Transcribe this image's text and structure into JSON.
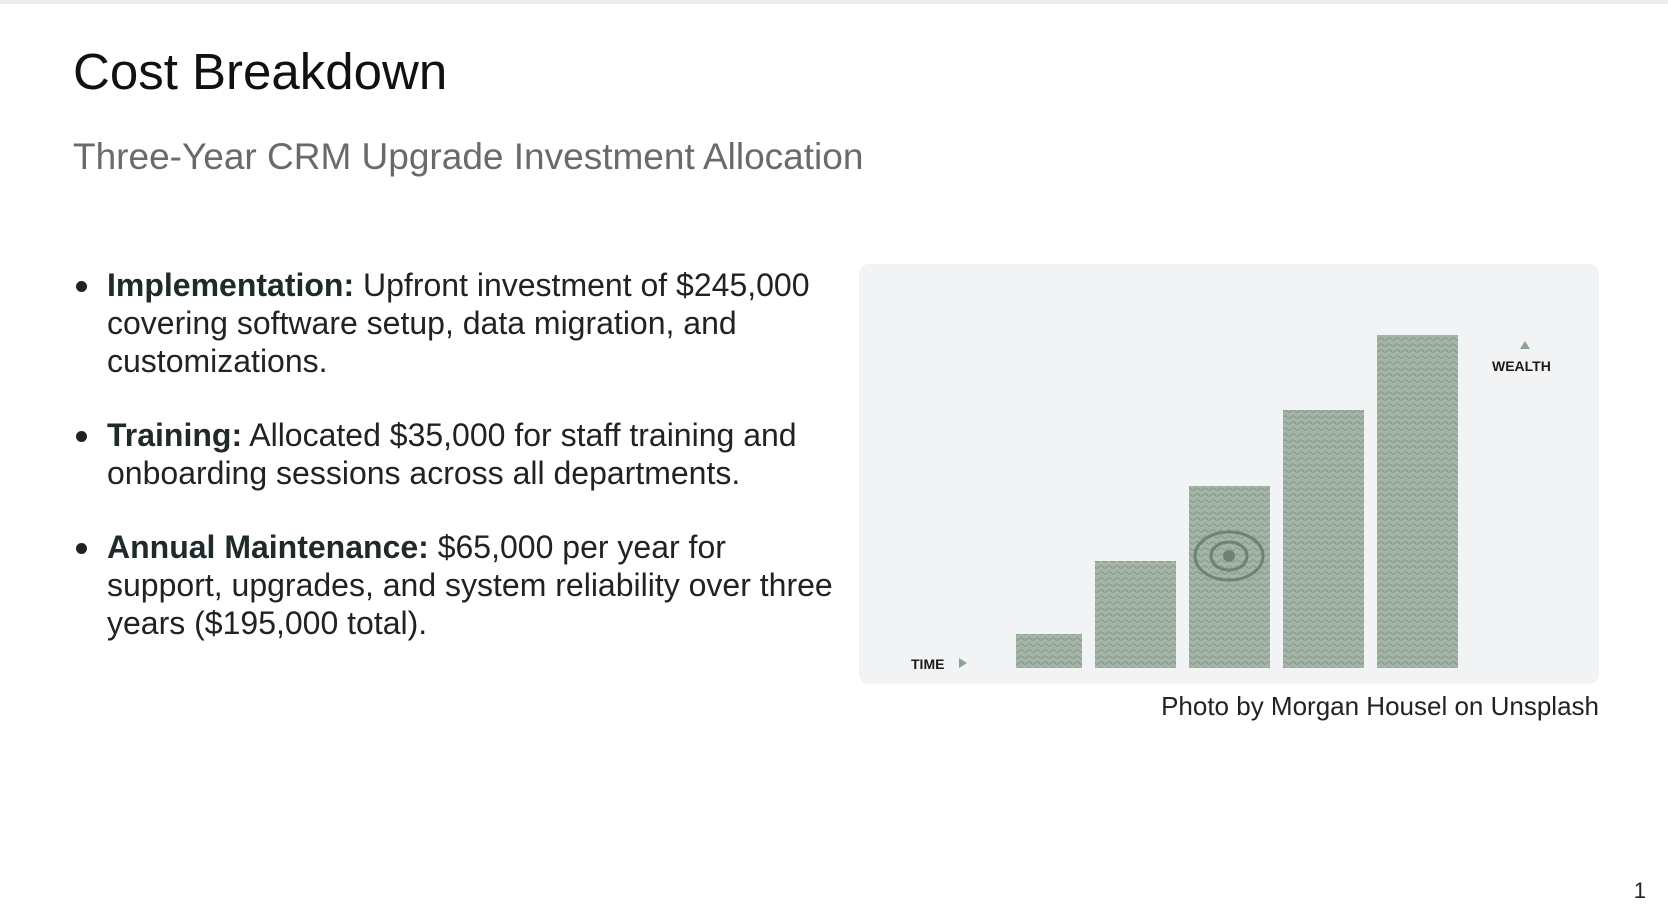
{
  "slide": {
    "title": "Cost Breakdown",
    "subtitle": "Three-Year CRM Upgrade Investment Allocation",
    "page_number": "1"
  },
  "bullets": [
    {
      "term": "Implementation:",
      "text": " Upfront investment of $245,000 covering software setup, data migration, and customizations."
    },
    {
      "term": "Training:",
      "text": " Allocated $35,000 for staff training and onboarding sessions across all departments."
    },
    {
      "term": "Annual Maintenance:",
      "text": " $65,000 per year for support, upgrades, and system reliability over three years ($195,000 total)."
    }
  ],
  "image": {
    "description_labels": {
      "x_axis": "TIME",
      "y_axis": "WEALTH"
    },
    "bar_color": "#9fb0a2",
    "background_color": "#f2f3f4",
    "caption": "Photo by Morgan Housel on Unsplash"
  }
}
